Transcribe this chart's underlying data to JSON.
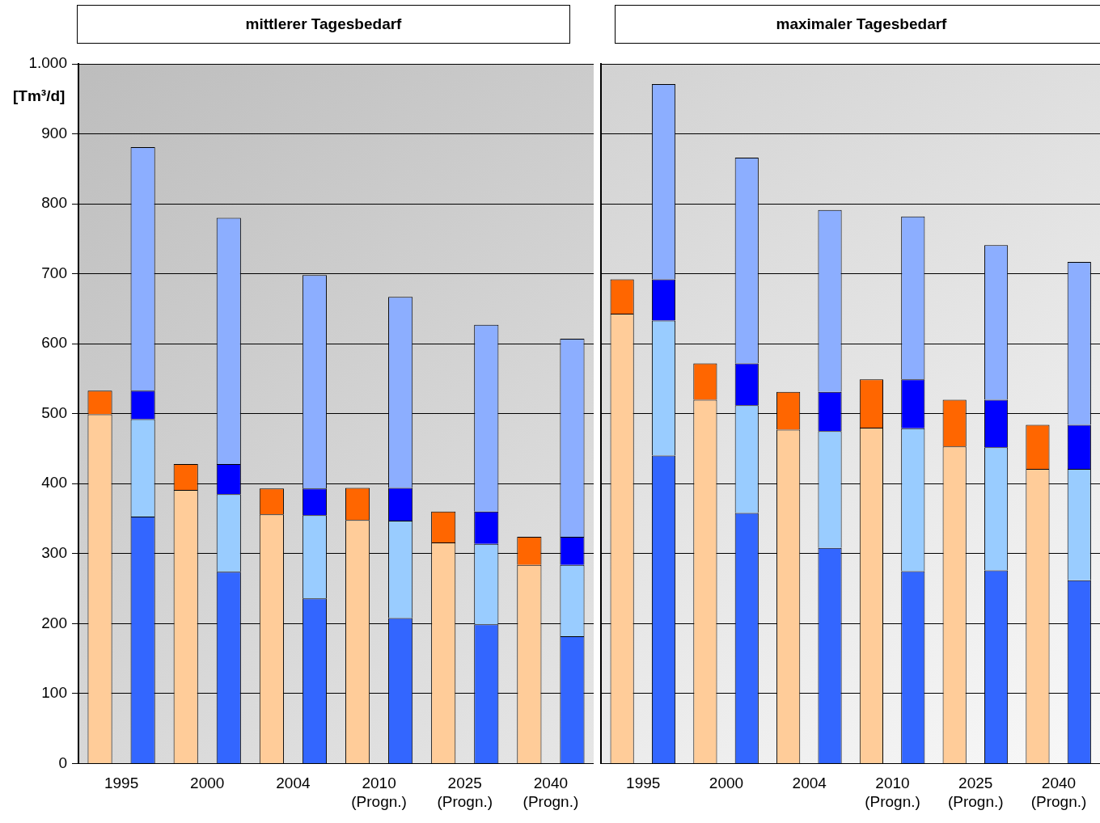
{
  "chart_data": [
    {
      "type": "bar",
      "title": "mittlerer Tagesbedarf",
      "ylabel": "[Tm³/d]",
      "stacked": true,
      "grid": "y",
      "legend": false,
      "categories": [
        "1995",
        null,
        "2000",
        null,
        "2004",
        null,
        "2010\n(Progn.)",
        null,
        "2025\n(Progn.)",
        null,
        "2040\n(Progn.)",
        null
      ],
      "ylim": [
        0,
        1000
      ],
      "yticks": [
        0,
        100,
        200,
        300,
        400,
        500,
        600,
        700,
        800,
        900,
        {
          "value": 1000,
          "label": "1.000"
        }
      ],
      "series": [
        {
          "color": "#ffcc99",
          "values": [
            499,
            null,
            391,
            null,
            356,
            null,
            348,
            null,
            316,
            null,
            284,
            null
          ]
        },
        {
          "color": "#ff6600",
          "values": [
            34,
            null,
            37,
            null,
            37,
            null,
            46,
            null,
            44,
            null,
            40,
            null
          ]
        },
        {
          "color": "#3366ff",
          "values": [
            null,
            353,
            null,
            274,
            null,
            236,
            null,
            208,
            null,
            199,
            null,
            182
          ]
        },
        {
          "color": "#99ccff",
          "values": [
            null,
            139,
            null,
            111,
            null,
            119,
            null,
            139,
            null,
            115,
            null,
            102
          ]
        },
        {
          "color": "#0000ff",
          "values": [
            null,
            41,
            null,
            43,
            null,
            38,
            null,
            47,
            null,
            46,
            null,
            40
          ]
        },
        {
          "color": "#8caeff",
          "values": [
            null,
            348,
            null,
            352,
            null,
            305,
            null,
            273,
            null,
            267,
            null,
            283
          ]
        }
      ]
    },
    {
      "type": "bar",
      "title": "maximaler Tagesbedarf",
      "stacked": true,
      "grid": "y",
      "legend": false,
      "tick_labels": "x",
      "categories": [
        "1995",
        null,
        "2000",
        null,
        "2004",
        null,
        "2010\n(Progn.)",
        null,
        "2025\n(Progn.)",
        null,
        "2040\n(Progn.)",
        null
      ],
      "ylim": [
        0,
        1000
      ],
      "yticks": [
        0,
        100,
        200,
        300,
        400,
        500,
        600,
        700,
        800,
        900,
        1000
      ],
      "series": [
        {
          "color": "#ffcc99",
          "values": [
            643,
            null,
            520,
            null,
            477,
            null,
            480,
            null,
            453,
            null,
            421,
            null
          ]
        },
        {
          "color": "#ff6600",
          "values": [
            49,
            null,
            52,
            null,
            54,
            null,
            69,
            null,
            67,
            null,
            63,
            null
          ]
        },
        {
          "color": "#3366ff",
          "values": [
            null,
            440,
            null,
            358,
            null,
            308,
            null,
            275,
            null,
            276,
            null,
            262
          ]
        },
        {
          "color": "#99ccff",
          "values": [
            null,
            193,
            null,
            154,
            null,
            167,
            null,
            204,
            null,
            176,
            null,
            159
          ]
        },
        {
          "color": "#0000ff",
          "values": [
            null,
            59,
            null,
            60,
            null,
            56,
            null,
            70,
            null,
            68,
            null,
            63
          ]
        },
        {
          "color": "#8caeff",
          "values": [
            null,
            279,
            null,
            294,
            null,
            260,
            null,
            233,
            null,
            221,
            null,
            233
          ]
        }
      ]
    }
  ]
}
